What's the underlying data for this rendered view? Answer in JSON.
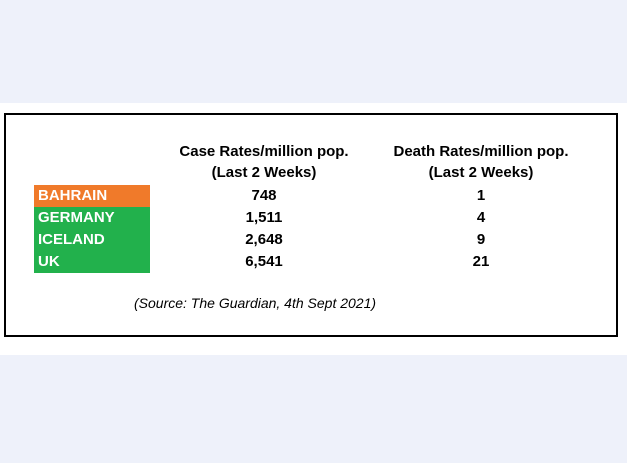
{
  "chart_data": {
    "type": "table",
    "columns": [
      "Case Rates/million pop.",
      "(Last 2 Weeks)",
      "Death Rates/million pop.",
      "(Last 2 Weeks)"
    ],
    "rows": [
      {
        "country": "BAHRAIN",
        "case_rate": "748",
        "death_rate": "1",
        "color": "#f07a2a"
      },
      {
        "country": "GERMANY",
        "case_rate": "1,511",
        "death_rate": "4",
        "color": "#22b14c"
      },
      {
        "country": "ICELAND",
        "case_rate": "2,648",
        "death_rate": "9",
        "color": "#22b14c"
      },
      {
        "country": "UK",
        "case_rate": "6,541",
        "death_rate": "21",
        "color": "#22b14c"
      }
    ],
    "source": "(Source: The Guardian, 4th Sept 2021)"
  }
}
